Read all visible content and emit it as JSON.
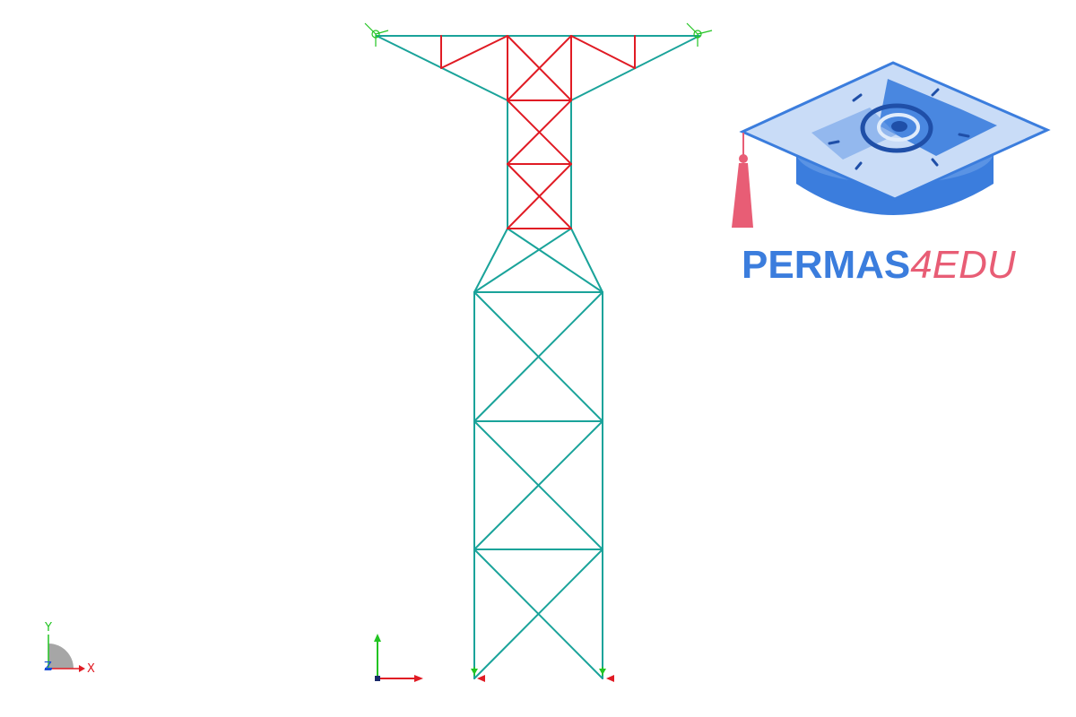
{
  "viewport": {
    "background": "#ffffff",
    "model_name": "transmission-tower-truss"
  },
  "colors": {
    "member_default": "#1aa39a",
    "member_highlight": "#e01b24",
    "support_marker": "#e01b24",
    "load_arrow": "#22c422",
    "axis_x": "#e01b24",
    "axis_y": "#22c422",
    "axis_z": "#1a4fd8",
    "logo_blue": "#3b7ddd",
    "logo_pink": "#e85d75"
  },
  "axis_triad": {
    "x_label": "X",
    "y_label": "Y",
    "z_label": "Z"
  },
  "logo": {
    "brand": "PERMAS",
    "suffix": "4EDU"
  }
}
